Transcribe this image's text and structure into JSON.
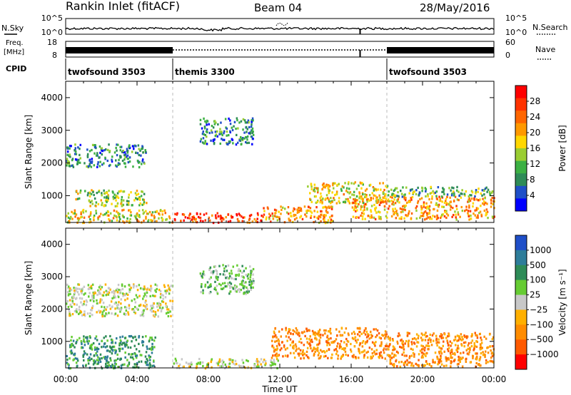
{
  "header": {
    "station": "Rankin Inlet (fitACF)",
    "beam": "Beam 04",
    "date": "28/May/2016"
  },
  "strips": {
    "nsky_label": "N.Sky",
    "nsearch_label": "N.Search",
    "freq_label_line1": "Freq.",
    "freq_label_line2": "[MHz]",
    "nave_label": "Nave",
    "cpid_label": "CPID",
    "noise_ticks_left": [
      "10^5",
      "10^0"
    ],
    "noise_ticks_right": [
      "10^5",
      "10^0"
    ],
    "freq_ticks": [
      "18",
      "8"
    ],
    "nave_ticks": [
      "60",
      "0"
    ],
    "cpid_segments": [
      {
        "name": "twofsound 3503",
        "start": 0,
        "end": 6
      },
      {
        "name": "themis 3300",
        "start": 6,
        "end": 18
      },
      {
        "name": "twofsound 3503",
        "start": 18,
        "end": 24
      }
    ]
  },
  "x_axis": {
    "label": "Time UT",
    "ticks": [
      "00:00",
      "04:00",
      "08:00",
      "12:00",
      "16:00",
      "20:00",
      "00:00"
    ]
  },
  "colors": {
    "power_scale": [
      "#0000ff",
      "#1f4fc8",
      "#2e8b57",
      "#3cb043",
      "#9acd32",
      "#ffd700",
      "#ff9900",
      "#ff6600",
      "#ff3300",
      "#ff0000"
    ],
    "velocity_scale": [
      "#1f4fc8",
      "#2e7d9a",
      "#2e8b57",
      "#66cc33",
      "#c8c8c8",
      "#ffb000",
      "#ff8c00",
      "#ff5a00",
      "#ff0000"
    ]
  },
  "chart_data": [
    {
      "type": "heatmap",
      "ylabel": "Slant Range [km]",
      "xlabel": "",
      "xlim": [
        0,
        24
      ],
      "ylim": [
        180,
        4500
      ],
      "yticks": [
        1000,
        2000,
        3000,
        4000
      ],
      "colorbar": {
        "label": "Power [dB]",
        "ticks": [
          "4",
          "8",
          "12",
          "16",
          "20",
          "24",
          "28"
        ],
        "range": [
          0,
          30
        ]
      },
      "echo_regions": [
        {
          "t0": 0.0,
          "t1": 6.0,
          "r0": 200,
          "r1": 600,
          "level": 16
        },
        {
          "t0": 0.5,
          "t1": 4.5,
          "r0": 700,
          "r1": 1200,
          "level": 12
        },
        {
          "t0": 0.0,
          "t1": 4.5,
          "r0": 1900,
          "r1": 2600,
          "level": 8
        },
        {
          "t0": 6.0,
          "t1": 11.0,
          "r0": 200,
          "r1": 500,
          "level": 28
        },
        {
          "t0": 7.5,
          "t1": 10.5,
          "r0": 2600,
          "r1": 3400,
          "level": 6
        },
        {
          "t0": 11.0,
          "t1": 15.0,
          "r0": 200,
          "r1": 700,
          "level": 20
        },
        {
          "t0": 13.5,
          "t1": 18.0,
          "r0": 800,
          "r1": 1450,
          "level": 16
        },
        {
          "t0": 16.0,
          "t1": 24.0,
          "r0": 300,
          "r1": 1000,
          "level": 20
        },
        {
          "t0": 18.0,
          "t1": 24.0,
          "r0": 1000,
          "r1": 1300,
          "level": 10
        }
      ]
    },
    {
      "type": "heatmap",
      "ylabel": "Slant Range [km]",
      "xlabel": "Time UT",
      "xlim": [
        0,
        24
      ],
      "ylim": [
        180,
        4500
      ],
      "yticks": [
        1000,
        2000,
        3000,
        4000
      ],
      "colorbar": {
        "label": "Velocity [m s⁻¹]",
        "ticks": [
          "1000",
          "500",
          "100",
          "25",
          "−25",
          "−100",
          "−500",
          "−1000"
        ],
        "range": [
          -1000,
          1000
        ]
      },
      "echo_regions": [
        {
          "t0": 0.0,
          "t1": 5.0,
          "r0": 200,
          "r1": 1200,
          "level": 100
        },
        {
          "t0": 0.0,
          "t1": 6.0,
          "r0": 1800,
          "r1": 2800,
          "level": 0
        },
        {
          "t0": 6.0,
          "t1": 12.0,
          "r0": 200,
          "r1": 500,
          "level": 0
        },
        {
          "t0": 7.5,
          "t1": 10.5,
          "r0": 2500,
          "r1": 3400,
          "level": 50
        },
        {
          "t0": 11.5,
          "t1": 18.0,
          "r0": 500,
          "r1": 1450,
          "level": -300
        },
        {
          "t0": 18.0,
          "t1": 24.0,
          "r0": 250,
          "r1": 1300,
          "level": -300
        }
      ]
    }
  ]
}
